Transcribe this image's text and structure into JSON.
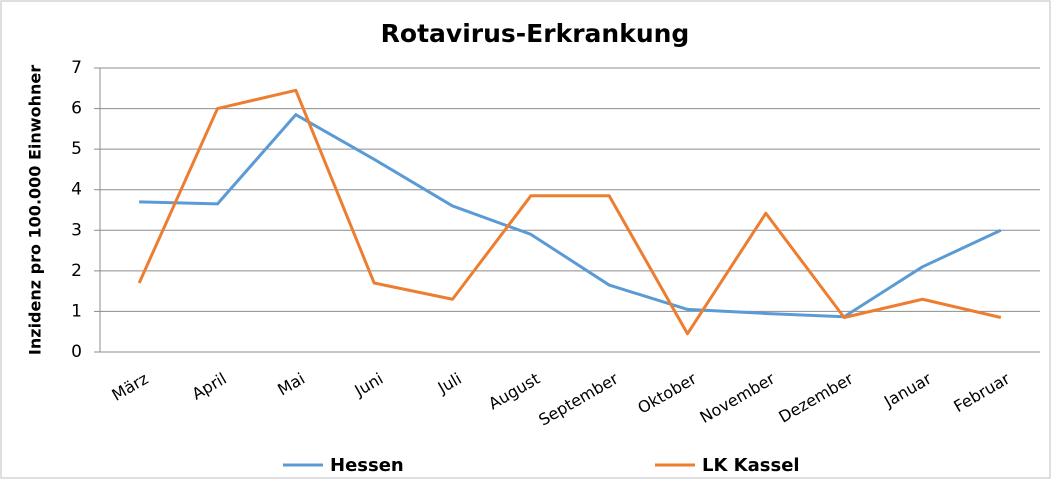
{
  "chart_data": {
    "type": "line",
    "title": "Rotavirus-Erkrankung",
    "ylabel": "Inzidenz pro 100.000 Einwohner",
    "categories": [
      "März",
      "April",
      "Mai",
      "Juni",
      "Juli",
      "August",
      "September",
      "Oktober",
      "November",
      "Dezember",
      "Januar",
      "Februar"
    ],
    "series": [
      {
        "name": "Hessen",
        "color": "#5b9bd5",
        "values": [
          3.7,
          3.65,
          5.85,
          4.75,
          3.6,
          2.9,
          1.65,
          1.05,
          0.95,
          0.87,
          2.1,
          3.0
        ]
      },
      {
        "name": "LK Kassel",
        "color": "#ed7d31",
        "values": [
          1.7,
          6.0,
          6.45,
          1.7,
          1.3,
          3.85,
          3.85,
          0.45,
          3.42,
          0.85,
          1.3,
          0.85
        ]
      }
    ],
    "ylim": [
      0,
      7
    ],
    "yticks": [
      0,
      1,
      2,
      3,
      4,
      5,
      6,
      7
    ],
    "grid": true,
    "legend": "bottom"
  }
}
